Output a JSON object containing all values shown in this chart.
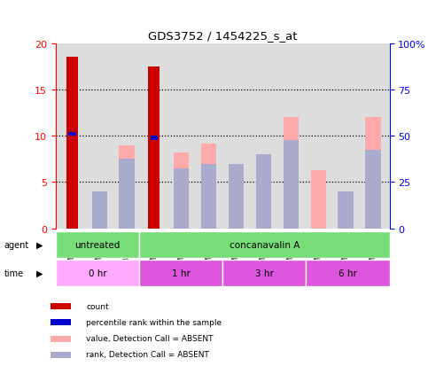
{
  "title": "GDS3752 / 1454225_s_at",
  "samples": [
    "GSM429426",
    "GSM429428",
    "GSM429430",
    "GSM429856",
    "GSM429857",
    "GSM429858",
    "GSM429859",
    "GSM429860",
    "GSM429862",
    "GSM429861",
    "GSM429863",
    "GSM429864"
  ],
  "count_values": [
    18.5,
    0,
    0,
    17.5,
    0,
    0,
    0,
    0,
    0,
    0,
    0,
    0
  ],
  "value_absent": [
    0,
    2.5,
    9.0,
    0,
    8.2,
    9.2,
    7.0,
    8.0,
    12.0,
    6.3,
    2.5,
    12.0
  ],
  "rank_absent": [
    0,
    4.0,
    7.5,
    0,
    6.5,
    7.0,
    7.0,
    8.0,
    9.5,
    0,
    4.0,
    8.5
  ],
  "percentile_rank": [
    10.2,
    0,
    0,
    9.8,
    0,
    0,
    0,
    0,
    0,
    0,
    0,
    0
  ],
  "ylim_left": [
    0,
    20
  ],
  "ylim_right": [
    0,
    100
  ],
  "yticks_left": [
    0,
    5,
    10,
    15,
    20
  ],
  "yticks_right": [
    0,
    25,
    50,
    75,
    100
  ],
  "ytick_labels_right": [
    "0",
    "25",
    "50",
    "75",
    "100%"
  ],
  "color_count": "#cc0000",
  "color_percentile": "#0000cc",
  "color_value_absent": "#ffaaaa",
  "color_rank_absent": "#aaaacc",
  "agent_groups": [
    {
      "label": "untreated",
      "start": 0,
      "end": 3,
      "color": "#77dd77"
    },
    {
      "label": "concanavalin A",
      "start": 3,
      "end": 12,
      "color": "#77dd77"
    }
  ],
  "time_groups": [
    {
      "label": "0 hr",
      "start": 0,
      "end": 3,
      "color": "#ffaaff"
    },
    {
      "label": "1 hr",
      "start": 3,
      "end": 6,
      "color": "#dd55dd"
    },
    {
      "label": "3 hr",
      "start": 6,
      "end": 9,
      "color": "#dd55dd"
    },
    {
      "label": "6 hr",
      "start": 9,
      "end": 12,
      "color": "#dd55dd"
    }
  ],
  "legend_items": [
    {
      "color": "#cc0000",
      "label": "count"
    },
    {
      "color": "#0000cc",
      "label": "percentile rank within the sample"
    },
    {
      "color": "#ffaaaa",
      "label": "value, Detection Call = ABSENT"
    },
    {
      "color": "#aaaacc",
      "label": "rank, Detection Call = ABSENT"
    }
  ],
  "bar_width": 0.35,
  "background_color": "#ffffff",
  "plot_bg": "#dddddd"
}
